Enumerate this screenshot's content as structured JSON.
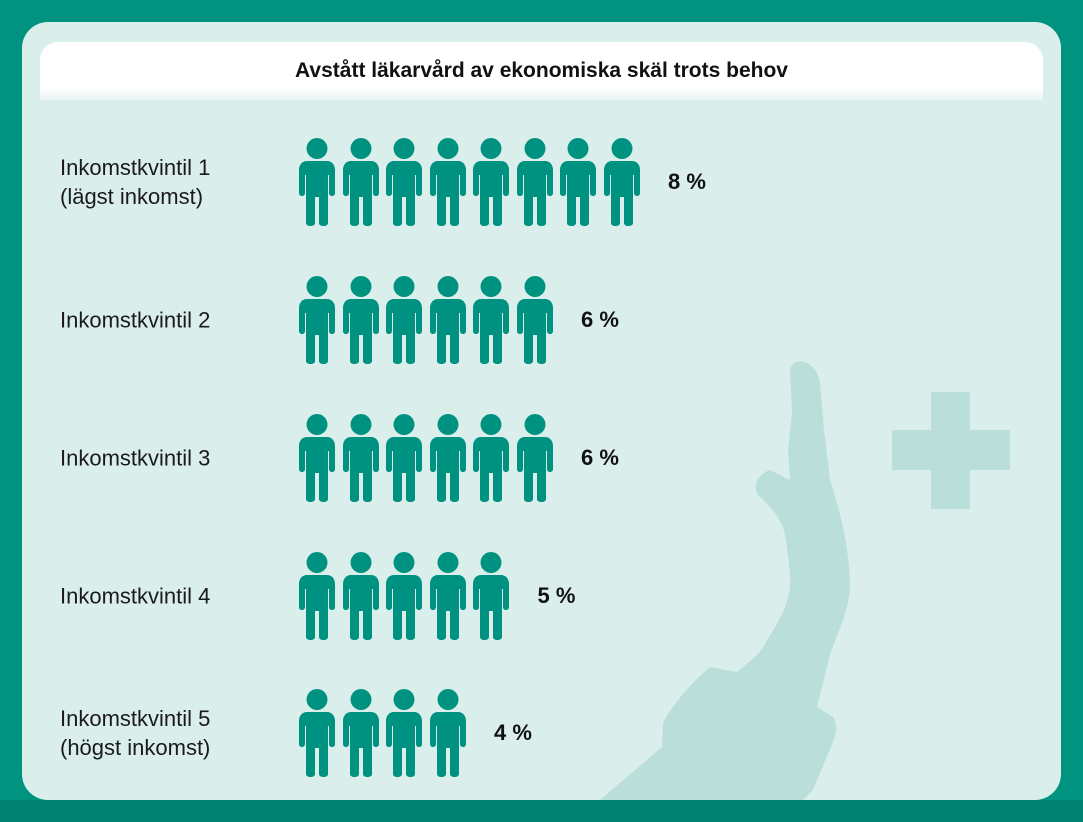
{
  "chart_data": {
    "type": "pictogram",
    "title": "Avstått läkarvård av ekonomiska skäl trots behov",
    "unit": "%",
    "categories": [
      "Inkomstkvintil 1\n(lägst inkomst)",
      "Inkomstkvintil 2",
      "Inkomstkvintil 3",
      "Inkomstkvintil 4",
      "Inkomstkvintil 5\n(högst inkomst)"
    ],
    "values": [
      8,
      6,
      6,
      5,
      4
    ],
    "value_labels": [
      "8 %",
      "6 %",
      "6 %",
      "5 %",
      "4 %"
    ],
    "icon": "person-icon",
    "icon_value": 1
  },
  "colors": {
    "background": "#00937f",
    "panel": "#daefec",
    "icon": "#009280",
    "decoration": "#badfda"
  }
}
